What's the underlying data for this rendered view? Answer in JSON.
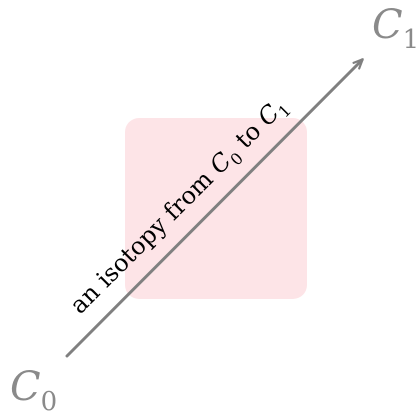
{
  "diagram": {
    "start_node": {
      "letter": "C",
      "subscript": "0"
    },
    "end_node": {
      "letter": "C",
      "subscript": "1"
    },
    "arrow_label": {
      "prefix": "an isotopy from ",
      "from_letter": "C",
      "from_subscript": "0",
      "middle": " to ",
      "to_letter": "C",
      "to_subscript": "1"
    },
    "colors": {
      "arrow": "#808080",
      "node_text": "#8a8a8a",
      "label_text": "#000000",
      "box_fill": "#fde4e7"
    }
  }
}
